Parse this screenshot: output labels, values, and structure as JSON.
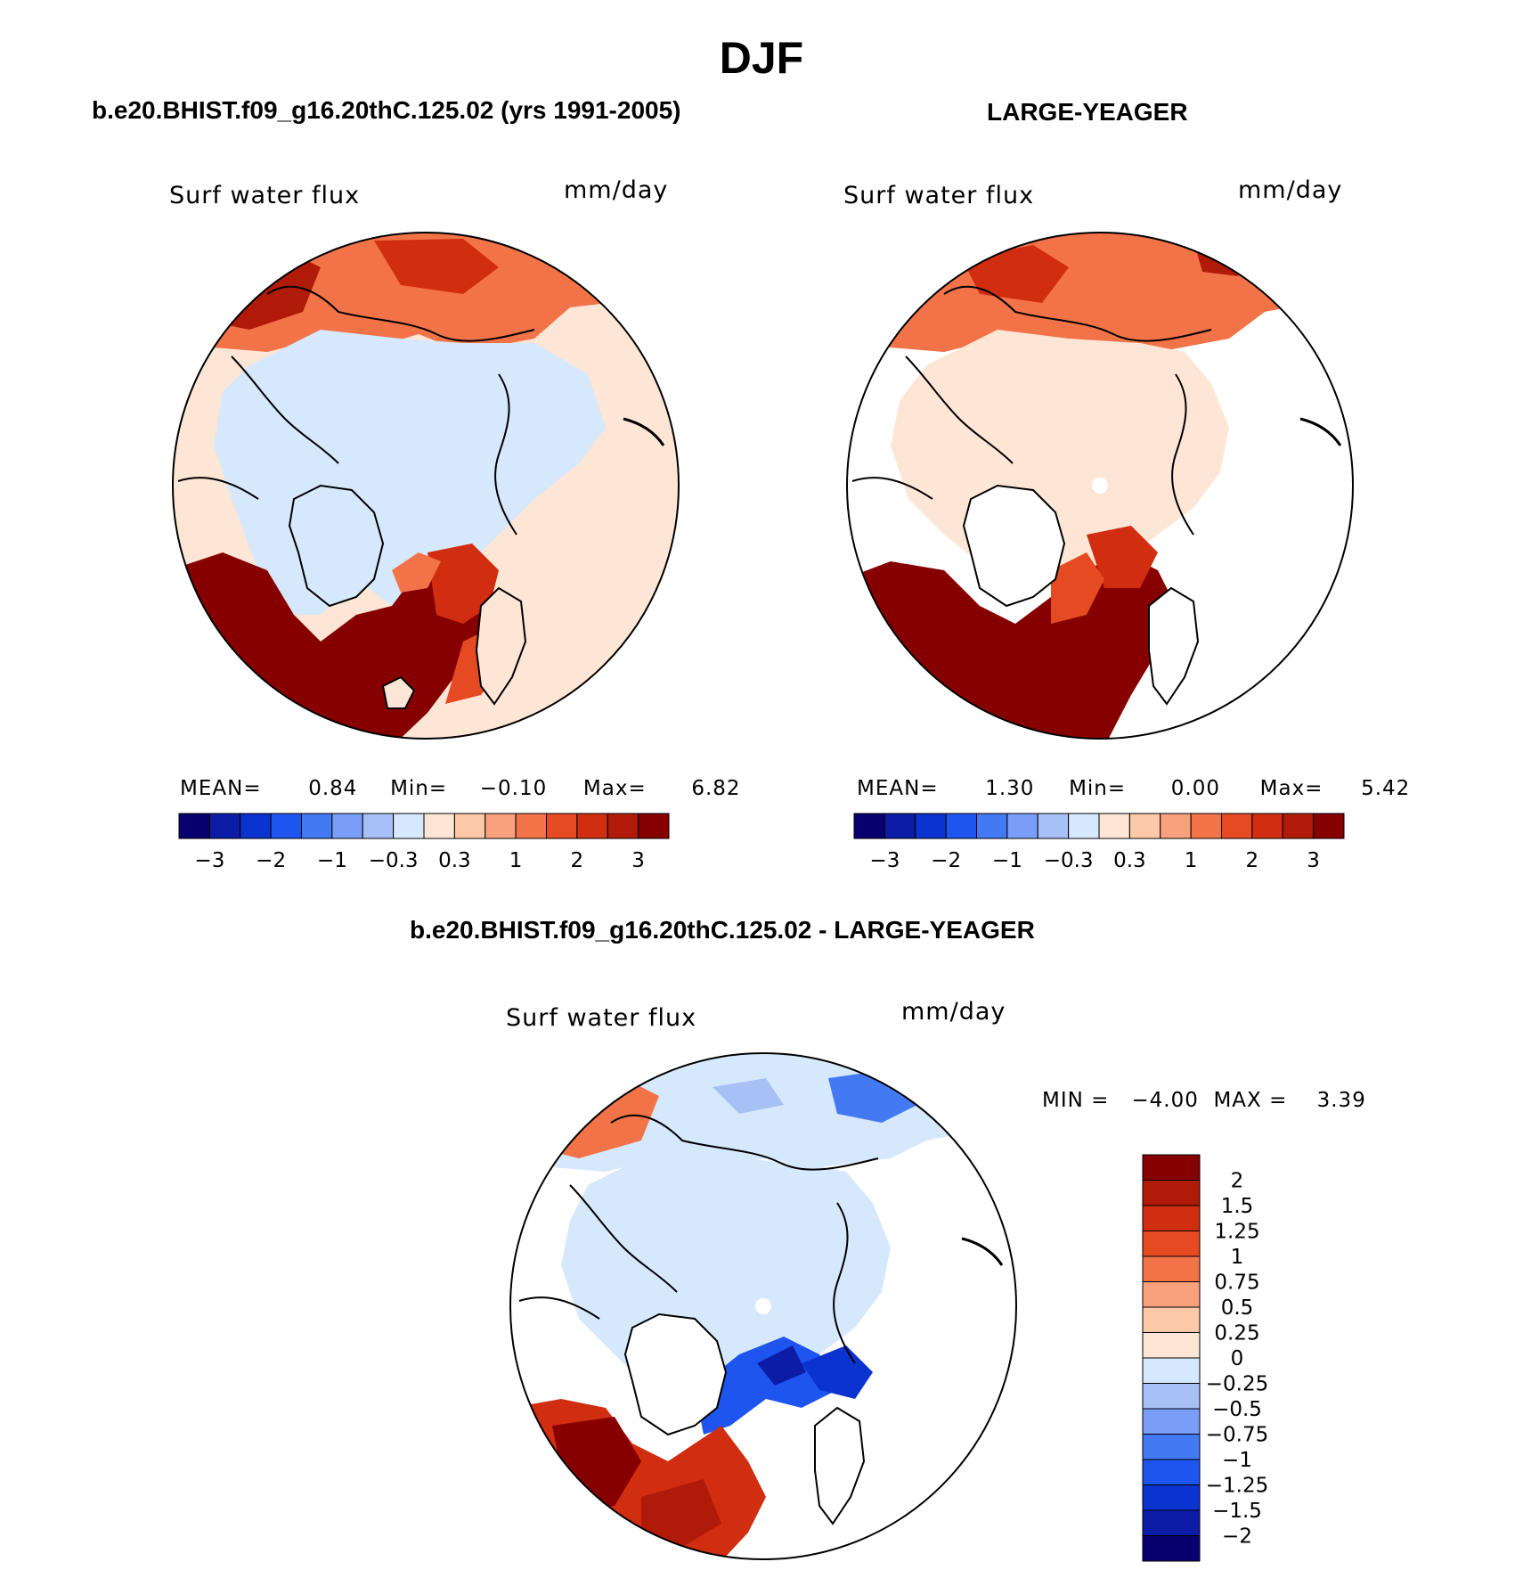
{
  "page": {
    "title": "DJF",
    "panels": [
      {
        "id": "model",
        "header": "b.e20.BHIST.f09_g16.20thC.125.02 (yrs 1991-2005)",
        "variable": "Surf water flux",
        "units": "mm/day",
        "stats": {
          "mean_label": "MEAN=",
          "mean": "0.84",
          "min_label": "Min=",
          "min": "−0.10",
          "max_label": "Max=",
          "max": "6.82"
        }
      },
      {
        "id": "obs",
        "header": "LARGE-YEAGER",
        "variable": "Surf water flux",
        "units": "mm/day",
        "stats": {
          "mean_label": "MEAN=",
          "mean": "1.30",
          "min_label": "Min=",
          "min": "0.00",
          "max_label": "Max=",
          "max": "5.42"
        }
      },
      {
        "id": "diff",
        "header": "b.e20.BHIST.f09_g16.20thC.125.02 - LARGE-YEAGER",
        "variable": "Surf water flux",
        "units": "mm/day",
        "stats_line": "MIN =   −4.00  MAX =    3.39"
      }
    ]
  },
  "colorbar_top": {
    "colors": [
      "#08006e",
      "#0c1ca6",
      "#0b33cf",
      "#1f55ef",
      "#4479f4",
      "#7a9ef7",
      "#a7c1f7",
      "#d6e8fb",
      "#fde6d5",
      "#fbc9a8",
      "#f8a17c",
      "#f37349",
      "#e64a22",
      "#d12d10",
      "#b01a08",
      "#870000"
    ],
    "tick_labels": [
      "−3",
      "−2",
      "−1",
      "−0.3",
      "0.3",
      "1",
      "2",
      "3"
    ]
  },
  "colorbar_diff": {
    "colors": [
      "#870000",
      "#b01a08",
      "#d12d10",
      "#e64a22",
      "#f37349",
      "#f8a17c",
      "#fbc9a8",
      "#fde6d5",
      "#d6e8fb",
      "#a7c1f7",
      "#7a9ef7",
      "#4479f4",
      "#1f55ef",
      "#0b33cf",
      "#0c1ca6",
      "#08006e"
    ],
    "tick_labels": [
      "2",
      "1.5",
      "1.25",
      "1",
      "0.75",
      "0.5",
      "0.25",
      "0",
      "−0.25",
      "−0.5",
      "−0.75",
      "−1",
      "−1.25",
      "−1.5",
      "−2"
    ]
  },
  "palette": {
    "dark_red": "#870000",
    "red": "#e64a22",
    "light_orange": "#fde6d5",
    "light_blue": "#d6e8fb",
    "blue": "#1f55ef",
    "navy": "#08006e"
  }
}
